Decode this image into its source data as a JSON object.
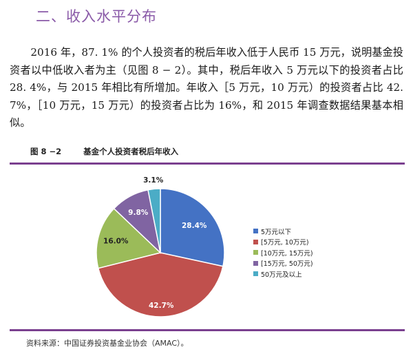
{
  "section_title": "二、收入水平分布",
  "paragraph": "2016 年，87. 1% 的个人投资者的税后年收入低于人民币 15 万元，说明基金投资者以中低收入者为主（见图 8 − 2）。其中，税后年收入 5 万元以下的投资者占比 28. 4%，与 2015 年相比有所增加。年收入［5 万元，10 万元）的投资者占比 42. 7%，［10 万元，15 万元）的投资者占比为 16%，和 2015 年调查数据结果基本相似。",
  "figure": {
    "number": "图 8 −2",
    "title": "基金个人投资者税后年收入"
  },
  "chart_data": {
    "type": "pie",
    "title": "",
    "slices": [
      {
        "label": "5万元以下",
        "value": 28.4,
        "value_label": "28.4%",
        "color": "#4472c4"
      },
      {
        "label": "[5万元, 10万元)",
        "value": 42.7,
        "value_label": "42.7%",
        "color": "#c0504d"
      },
      {
        "label": "[10万元, 15万元)",
        "value": 16.0,
        "value_label": "16.0%",
        "color": "#9bbb59"
      },
      {
        "label": "[15万元, 50万元)",
        "value": 9.8,
        "value_label": "9.8%",
        "color": "#8064a2"
      },
      {
        "label": "50万元及以上",
        "value": 3.1,
        "value_label": "3.1%",
        "color": "#4bacc6"
      }
    ],
    "start_angle": "12 o'clock",
    "direction": "clockwise",
    "legend_position": "right"
  },
  "source": "资料来源：中国证券投资基金业协会（AMAC）。"
}
